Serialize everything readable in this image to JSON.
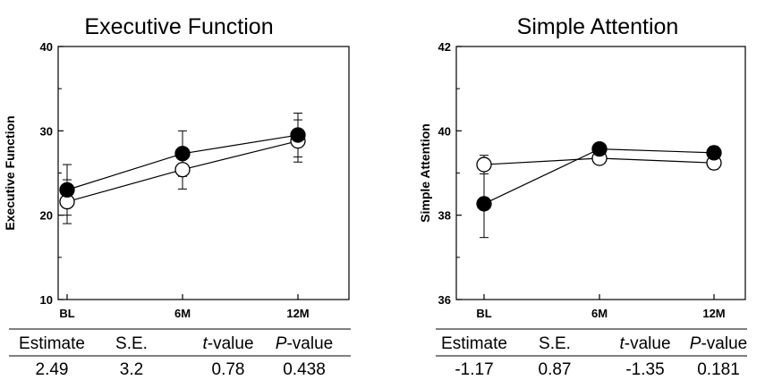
{
  "chart_data": [
    {
      "type": "line",
      "title": "Executive Function",
      "ylabel": "Executive Function",
      "xlabel": "",
      "categories": [
        "BL",
        "6M",
        "12M"
      ],
      "ylim": [
        10,
        40
      ],
      "yticks": [
        10,
        20,
        30,
        40
      ],
      "series": [
        {
          "name": "filled",
          "marker": "filled",
          "values": [
            23.0,
            27.3,
            29.5
          ],
          "errors": [
            3.0,
            2.7,
            2.6
          ]
        },
        {
          "name": "open",
          "marker": "open",
          "values": [
            21.6,
            25.4,
            28.8
          ],
          "errors": [
            2.6,
            2.3,
            2.5
          ]
        }
      ],
      "stats": {
        "headers": {
          "estimate": "Estimate",
          "se": "S.E.",
          "t_letter": "t",
          "t_suffix": "-value",
          "p_letter": "P",
          "p_suffix": "-value"
        },
        "values": {
          "estimate": "2.49",
          "se": "3.2",
          "t": "0.78",
          "p": "0.438"
        }
      }
    },
    {
      "type": "line",
      "title": "Simple Attention",
      "ylabel": "Simple Attention",
      "xlabel": "",
      "categories": [
        "BL",
        "6M",
        "12M"
      ],
      "ylim": [
        36,
        42
      ],
      "yticks": [
        36,
        38,
        40,
        42
      ],
      "series": [
        {
          "name": "filled",
          "marker": "filled",
          "values": [
            38.27,
            39.57,
            39.48
          ],
          "errors": [
            0.8,
            0.08,
            0.15
          ]
        },
        {
          "name": "open",
          "marker": "open",
          "values": [
            39.2,
            39.35,
            39.24
          ],
          "errors": [
            0.22,
            0.12,
            0.15
          ]
        }
      ],
      "stats": {
        "headers": {
          "estimate": "Estimate",
          "se": "S.E.",
          "t_letter": "t",
          "t_suffix": "-value",
          "p_letter": "P",
          "p_suffix": "-value"
        },
        "values": {
          "estimate": "-1.17",
          "se": "0.87",
          "t": "-1.35",
          "p": "0.181"
        }
      }
    }
  ]
}
